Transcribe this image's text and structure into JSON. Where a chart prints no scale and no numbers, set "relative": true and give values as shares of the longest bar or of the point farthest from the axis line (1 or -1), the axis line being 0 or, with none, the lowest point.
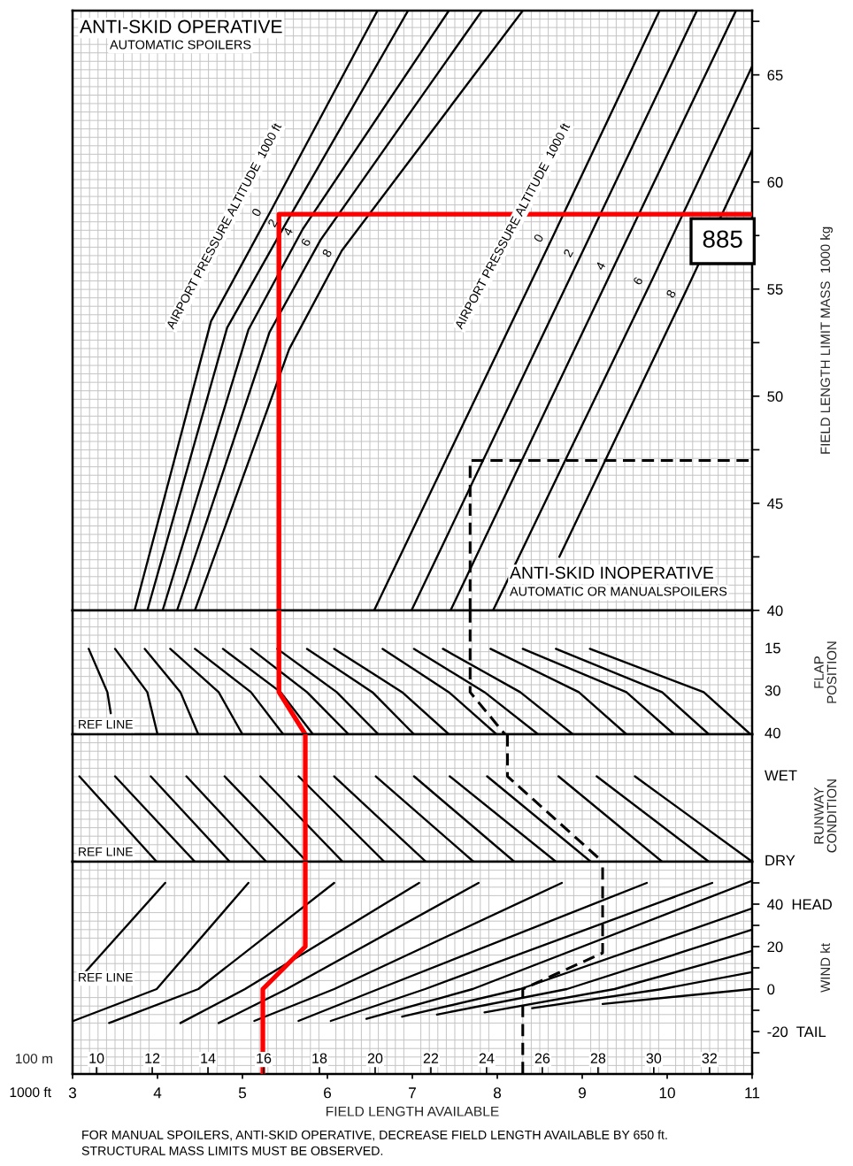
{
  "chart_data": [
    {
      "type": "line",
      "xlim": [
        3,
        11
      ],
      "ylim": [
        40,
        68
      ],
      "yticks": [
        40,
        {
          "value": 42.5,
          "label": null
        },
        45,
        {
          "value": 47.5,
          "label": null
        },
        50,
        {
          "value": 52.5,
          "label": null
        },
        55,
        {
          "value": 57.5,
          "label": null
        },
        60,
        {
          "value": 62.5,
          "label": null
        },
        65,
        {
          "value": 67.5,
          "label": null
        }
      ],
      "ylabel": "FIELD LENGTH LIMIT MASS  1000 kg",
      "tick_labels": "y",
      "grid": true,
      "annotations": [
        "ANTI-SKID OPERATIVE",
        "AUTOMATIC SPOILERS",
        "AIRPORT PRESSURE ALTITUDE  1000 ft",
        "AIRPORT PRESSURE ALTITUDE  1000 ft",
        "ANTI-SKID INOPERATIVE",
        "AUTOMATIC OR MANUALSPOILERS",
        {
          "text": "0",
          "x": 5.34,
          "y": 58.7
        },
        {
          "text": "2",
          "x": 5.53,
          "y": 58.2
        },
        {
          "text": "4",
          "x": 5.71,
          "y": 57.8
        },
        {
          "text": "6",
          "x": 5.92,
          "y": 57.3
        },
        {
          "text": "8",
          "x": 6.17,
          "y": 56.8
        },
        {
          "text": "0",
          "x": 8.66,
          "y": 57.5
        },
        {
          "text": "2",
          "x": 9.01,
          "y": 56.8
        },
        {
          "text": "4",
          "x": 9.39,
          "y": 56.2
        },
        {
          "text": "6",
          "x": 9.83,
          "y": 55.5
        },
        {
          "text": "8",
          "x": 10.22,
          "y": 54.9
        },
        {
          "text": "885",
          "x": 11,
          "y": 58.5
        }
      ],
      "series": [
        {
          "color": "#000000",
          "x": [
            3.73,
            4.63,
            5.34,
            6.59
          ],
          "values": [
            40,
            53.5,
            58.7,
            68
          ]
        },
        {
          "color": "#000000",
          "x": [
            3.88,
            4.82,
            5.53,
            6.95
          ],
          "values": [
            40,
            53.2,
            58.2,
            68
          ]
        },
        {
          "color": "#000000",
          "x": [
            4.06,
            5.07,
            5.71,
            7.43
          ],
          "values": [
            40,
            53.1,
            57.8,
            68
          ]
        },
        {
          "color": "#000000",
          "x": [
            4.23,
            5.32,
            5.92,
            7.82
          ],
          "values": [
            40,
            53.0,
            57.3,
            68
          ]
        },
        {
          "color": "#000000",
          "x": [
            4.44,
            5.55,
            6.17,
            8.3
          ],
          "values": [
            40,
            52.2,
            56.8,
            68
          ]
        },
        {
          "color": "#000000",
          "x": [
            6.55,
            8.66,
            9.91
          ],
          "values": [
            40,
            57.5,
            68
          ]
        },
        {
          "color": "#000000",
          "x": [
            6.99,
            9.01,
            10.35
          ],
          "values": [
            40,
            56.8,
            68
          ]
        },
        {
          "color": "#000000",
          "x": [
            7.45,
            9.39,
            10.81
          ],
          "values": [
            40,
            56.2,
            68
          ]
        },
        {
          "color": "#000000",
          "x": [
            7.95,
            9.83,
            11
          ],
          "values": [
            40,
            55.5,
            65.4
          ]
        },
        {
          "color": "#000000",
          "x": [
            8.73,
            10.22,
            11
          ],
          "values": [
            42.5,
            54.9,
            61.5
          ]
        },
        {
          "color": "#ff0000",
          "x": [
            11,
            5.43,
            5.43
          ],
          "values": [
            58.5,
            58.5,
            40
          ]
        },
        {
          "color": "#000000",
          "line_style": "dashed",
          "x": [
            7.68,
            7.68,
            11
          ],
          "values": [
            40,
            47,
            47
          ]
        }
      ]
    },
    {
      "type": "line",
      "relative": true,
      "xlim": [
        3,
        11
      ],
      "ylabel": "FLAP\nPOSITION",
      "tick_labels": false,
      "grid": true,
      "annotations": [
        "REF LINE",
        "15",
        "30",
        "40"
      ],
      "series": [
        {
          "color": "#000000",
          "x": [
            3.19,
            3.41,
            3.45
          ],
          "values": [
            0.69,
            0.34,
            0.17
          ]
        },
        {
          "color": "#000000",
          "x": [
            3.5,
            3.88,
            4.0
          ],
          "values": [
            0.69,
            0.34,
            0
          ]
        },
        {
          "color": "#000000",
          "x": [
            3.85,
            4.27,
            4.48
          ],
          "values": [
            0.69,
            0.34,
            0
          ]
        },
        {
          "color": "#000000",
          "x": [
            4.15,
            4.72,
            5.0
          ],
          "values": [
            0.69,
            0.34,
            0
          ]
        },
        {
          "color": "#000000",
          "x": [
            4.44,
            5.1,
            5.48
          ],
          "values": [
            0.69,
            0.34,
            0
          ]
        },
        {
          "color": "#000000",
          "x": [
            4.77,
            5.45,
            5.83
          ],
          "values": [
            0.69,
            0.34,
            0
          ]
        },
        {
          "color": "#000000",
          "x": [
            5.1,
            5.76,
            6.25
          ],
          "values": [
            0.69,
            0.34,
            0
          ]
        },
        {
          "color": "#000000",
          "x": [
            5.41,
            6.11,
            6.6
          ],
          "values": [
            0.69,
            0.34,
            0
          ]
        },
        {
          "color": "#000000",
          "x": [
            5.76,
            6.53,
            7.02
          ],
          "values": [
            0.69,
            0.34,
            0
          ]
        },
        {
          "color": "#000000",
          "x": [
            6.08,
            6.88,
            7.43
          ],
          "values": [
            0.69,
            0.34,
            0
          ]
        },
        {
          "color": "#000000",
          "x": [
            6.65,
            7.43,
            7.99
          ],
          "values": [
            0.69,
            0.34,
            0
          ]
        },
        {
          "color": "#000000",
          "x": [
            7.02,
            7.85,
            8.48
          ],
          "values": [
            0.69,
            0.34,
            0
          ]
        },
        {
          "color": "#000000",
          "x": [
            7.36,
            8.27,
            8.89
          ],
          "values": [
            0.69,
            0.34,
            0
          ]
        },
        {
          "color": "#000000",
          "x": [
            7.92,
            8.96,
            9.52
          ],
          "values": [
            0.69,
            0.34,
            0
          ]
        },
        {
          "color": "#000000",
          "x": [
            8.3,
            9.52,
            10.08
          ],
          "values": [
            0.69,
            0.34,
            0
          ]
        },
        {
          "color": "#000000",
          "x": [
            8.69,
            9.94,
            10.49
          ],
          "values": [
            0.69,
            0.34,
            0
          ]
        },
        {
          "color": "#000000",
          "x": [
            9.09,
            10.43,
            10.98
          ],
          "values": [
            0.69,
            0.34,
            0
          ]
        },
        {
          "color": "#ff0000",
          "x": [
            5.43,
            5.43,
            5.74
          ],
          "values": [
            1,
            0.34,
            0
          ]
        },
        {
          "color": "#000000",
          "line_style": "dashed",
          "x": [
            7.68,
            7.68,
            8.09
          ],
          "values": [
            1,
            0.34,
            0
          ]
        }
      ]
    },
    {
      "type": "line",
      "relative": true,
      "xlim": [
        3,
        11
      ],
      "ylabel": "RUNWAY\nCONDITION",
      "tick_labels": false,
      "grid": true,
      "annotations": [
        "REF LINE",
        "WET",
        "DRY"
      ],
      "series": [
        {
          "color": "#000000",
          "x": [
            3.08,
            3.99
          ],
          "values": [
            0.67,
            0
          ]
        },
        {
          "color": "#000000",
          "x": [
            3.5,
            4.44
          ],
          "values": [
            0.67,
            0
          ]
        },
        {
          "color": "#000000",
          "x": [
            3.92,
            4.85
          ],
          "values": [
            0.67,
            0
          ]
        },
        {
          "color": "#000000",
          "x": [
            4.34,
            5.28
          ],
          "values": [
            0.67,
            0
          ]
        },
        {
          "color": "#000000",
          "x": [
            4.79,
            5.76
          ],
          "values": [
            0.67,
            0
          ]
        },
        {
          "color": "#000000",
          "x": [
            5.21,
            6.18
          ],
          "values": [
            0.67,
            0
          ]
        },
        {
          "color": "#000000",
          "x": [
            5.66,
            6.67
          ],
          "values": [
            0.67,
            0
          ]
        },
        {
          "color": "#000000",
          "x": [
            6.08,
            7.16
          ],
          "values": [
            0.67,
            0
          ]
        },
        {
          "color": "#000000",
          "x": [
            6.57,
            7.72
          ],
          "values": [
            0.67,
            0
          ]
        },
        {
          "color": "#000000",
          "x": [
            7.02,
            8.2
          ],
          "values": [
            0.67,
            0
          ]
        },
        {
          "color": "#000000",
          "x": [
            7.44,
            8.69
          ],
          "values": [
            0.67,
            0
          ]
        },
        {
          "color": "#000000",
          "x": [
            7.88,
            9.1
          ],
          "values": [
            0.67,
            0
          ]
        },
        {
          "color": "#000000",
          "x": [
            8.72,
            9.94
          ],
          "values": [
            0.67,
            0
          ]
        },
        {
          "color": "#000000",
          "x": [
            9.17,
            10.49
          ],
          "values": [
            0.67,
            0
          ]
        },
        {
          "color": "#000000",
          "x": [
            9.62,
            11
          ],
          "values": [
            0.67,
            0
          ]
        },
        {
          "color": "#ff0000",
          "x": [
            5.74,
            5.74
          ],
          "values": [
            1,
            0
          ]
        },
        {
          "color": "#000000",
          "line_style": "dashed",
          "x": [
            8.12,
            8.12,
            9.24
          ],
          "values": [
            1,
            0.67,
            0
          ]
        }
      ]
    },
    {
      "type": "line",
      "xlim": [
        3,
        11
      ],
      "ylim": [
        -40,
        60
      ],
      "xticks": [
        3,
        4,
        5,
        6,
        7,
        8,
        9,
        10,
        11
      ],
      "xlabel": "FIELD LENGTH AVAILABLE",
      "x2lim": [
        9.14,
        33.53
      ],
      "x2ticks": [
        10,
        12,
        14,
        16,
        18,
        20,
        22,
        24,
        26,
        28,
        30,
        32
      ],
      "x2label": "100 m",
      "yticks": [
        {
          "value": -30,
          "label": null
        },
        {
          "value": -20,
          "label": "-20  TAIL"
        },
        {
          "value": -10,
          "label": null
        },
        0,
        {
          "value": 10,
          "label": null
        },
        20,
        {
          "value": 30,
          "label": null
        },
        {
          "value": 40,
          "label": "40  HEAD"
        },
        {
          "value": 50,
          "label": null
        }
      ],
      "ylabel": "WIND kt",
      "grid": true,
      "annotations": [
        "REF LINE",
        "1000 ft",
        "FOR MANUAL SPOILERS, ANTI-SKID OPERATIVE, DECREASE FIELD LENGTH AVAILABLE BY 650 ft.",
        "STRUCTURAL MASS LIMITS MUST BE OBSERVED."
      ],
      "series": [
        {
          "color": "#000000",
          "x": [
            3.15,
            4.09
          ],
          "values": [
            8,
            50
          ]
        },
        {
          "color": "#000000",
          "x": [
            3.01,
            3.99,
            5.07
          ],
          "values": [
            -15,
            0,
            50
          ]
        },
        {
          "color": "#000000",
          "x": [
            3.43,
            4.48,
            6.08
          ],
          "values": [
            -16,
            0,
            50
          ]
        },
        {
          "color": "#000000",
          "x": [
            4.27,
            5.03,
            7.08
          ],
          "values": [
            -16,
            0,
            50
          ]
        },
        {
          "color": "#000000",
          "x": [
            4.72,
            5.52,
            7.78
          ],
          "values": [
            -16,
            0,
            50
          ]
        },
        {
          "color": "#000000",
          "x": [
            5.14,
            6.08,
            8.76
          ],
          "values": [
            -15,
            0,
            50
          ]
        },
        {
          "color": "#000000",
          "x": [
            5.66,
            6.6,
            9.76
          ],
          "values": [
            -15,
            0,
            50
          ]
        },
        {
          "color": "#000000",
          "x": [
            6.04,
            7.15,
            10.53
          ],
          "values": [
            -15,
            0,
            50
          ]
        },
        {
          "color": "#000000",
          "x": [
            6.46,
            7.71,
            11
          ],
          "values": [
            -14,
            0,
            51
          ]
        },
        {
          "color": "#000000",
          "x": [
            6.88,
            8.27,
            11
          ],
          "values": [
            -13,
            0,
            38
          ]
        },
        {
          "color": "#000000",
          "x": [
            7.29,
            8.82,
            11
          ],
          "values": [
            -12,
            0,
            28
          ]
        },
        {
          "color": "#000000",
          "x": [
            7.85,
            9.38,
            11
          ],
          "values": [
            -11,
            0,
            18
          ]
        },
        {
          "color": "#000000",
          "x": [
            8.41,
            9.94,
            11
          ],
          "values": [
            -9,
            0,
            8
          ]
        },
        {
          "color": "#000000",
          "x": [
            9.24,
            11
          ],
          "values": [
            -7,
            0
          ]
        },
        {
          "color": "#ff0000",
          "x": [
            5.74,
            5.74,
            5.24,
            5.24
          ],
          "values": [
            60,
            20,
            0,
            -40
          ]
        },
        {
          "color": "#000000",
          "line_style": "dashed",
          "x": [
            8.3,
            8.3,
            9.24,
            9.24
          ],
          "values": [
            -40,
            0,
            17,
            60
          ]
        }
      ]
    }
  ]
}
